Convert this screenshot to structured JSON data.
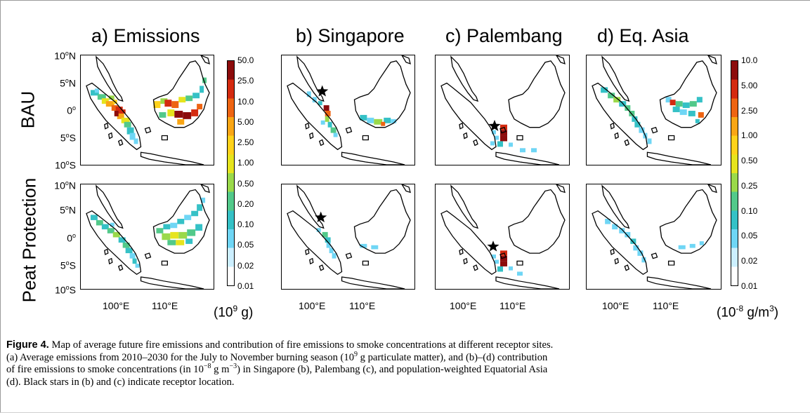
{
  "titles": {
    "a": "a) Emissions",
    "b": "b) Singapore",
    "c": "c) Palembang",
    "d": "d) Eq. Asia"
  },
  "rows": {
    "top": "BAU",
    "bottom": "Peat Protection"
  },
  "lat_labels": [
    "10",
    "5",
    "0",
    "5",
    "10"
  ],
  "lat_suffix": [
    "N",
    "N",
    "",
    "S",
    "S"
  ],
  "lon_labels": [
    "100°E",
    "110°E"
  ],
  "colorbar_emissions": {
    "ticks": [
      "50.0",
      "25.0",
      "10.0",
      "5.00",
      "2.50",
      "1.00",
      "0.50",
      "0.20",
      "0.10",
      "0.05",
      "0.02",
      "0.01"
    ],
    "unit_base": "(10",
    "unit_exp": "9",
    "unit_rest": " g)"
  },
  "colorbar_conc": {
    "ticks": [
      "10.0",
      "5.00",
      "2.50",
      "1.00",
      "0.50",
      "0.25",
      "0.10",
      "0.05",
      "0.02",
      "0.01"
    ],
    "unit_base": "(10",
    "unit_exp": "-8",
    "unit_mid": " g/m",
    "unit_exp2": "3",
    "unit_rest": ")"
  },
  "colormap": [
    "#ffffff",
    "#ccefff",
    "#6fd6f5",
    "#35c1c6",
    "#52c98a",
    "#9ad94a",
    "#e6e41e",
    "#ffd21a",
    "#f9a615",
    "#ee6412",
    "#d42a10",
    "#8c0c0c"
  ],
  "caption": {
    "label": "Figure 4.",
    "line1": " Map of average future fire emissions and contribution of fire emissions to smoke concentrations at different receptor sites.",
    "line2a": "(a) Average emissions from 2010–2030 for the July to November burning season (10",
    "line2b": "9",
    "line2c": " g particulate matter), and (b)–(d) contribution",
    "line3a": "of fire emissions to smoke concentrations (in 10",
    "line3b": "−8",
    "line3c": " g m",
    "line3d": "−3",
    "line3e": ") in Singapore (b), Palembang (c), and population-weighted Equatorial Asia",
    "line4": "(d). Black stars in (b) and (c) indicate receptor location."
  }
}
